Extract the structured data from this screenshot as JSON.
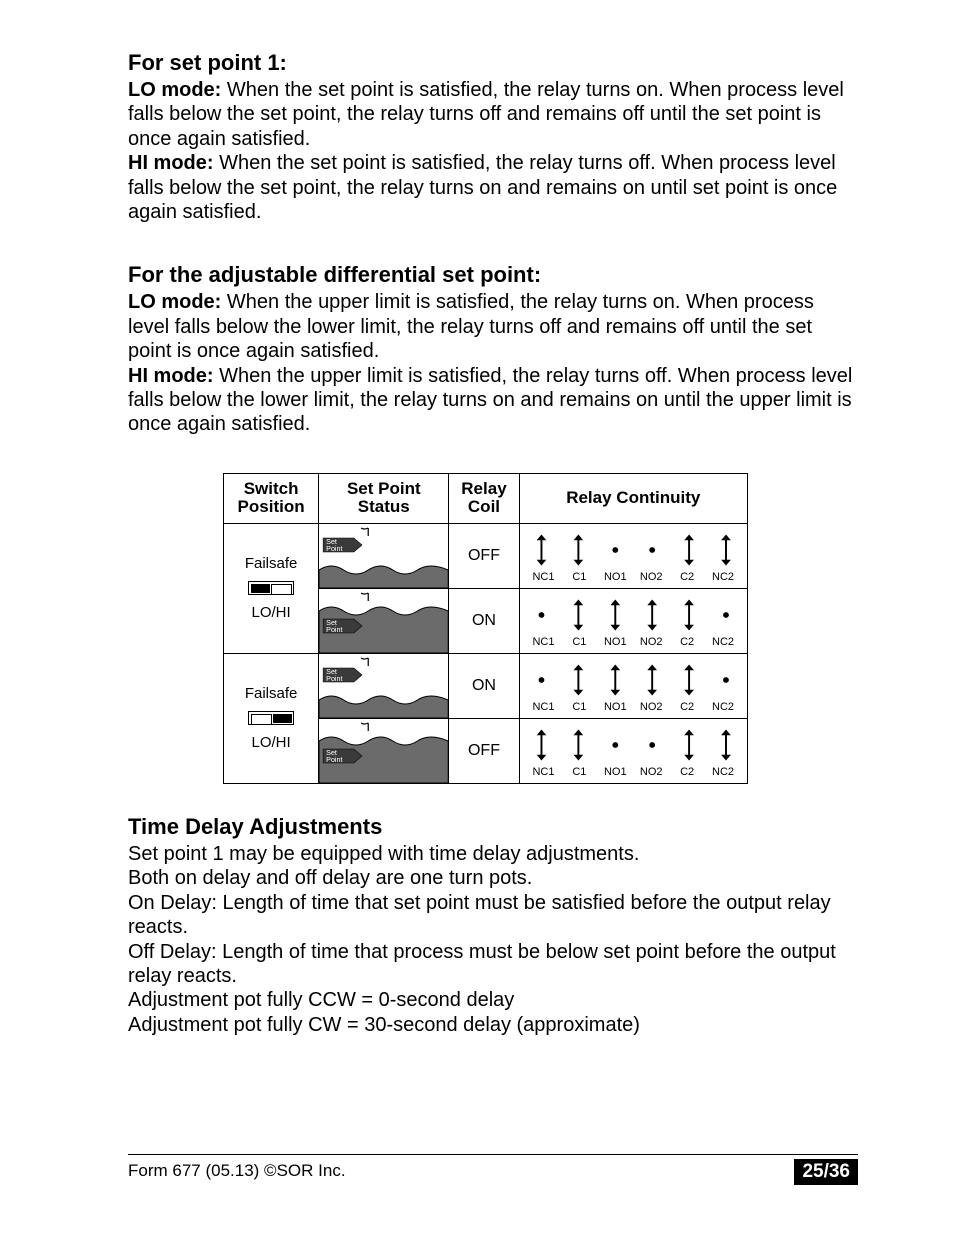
{
  "section1": {
    "heading": "For set point 1:",
    "lo_label": "LO mode:",
    "lo_text": " When the set point is satisfied, the relay turns on. When process level falls below the set point, the relay turns off and remains off until the set point is once again satisfied.",
    "hi_label": "HI mode:",
    "hi_text": " When the set point is satisfied, the relay turns off. When process level falls below the set point, the relay turns on and remains on until set point is once again satisfied."
  },
  "section2": {
    "heading": "For the adjustable differential set point:",
    "lo_label": "LO mode:",
    "lo_text": " When the upper limit is satisfied, the relay turns on. When process level falls below the lower limit, the relay turns off and remains off until the set point is once again satisfied.",
    "hi_label": "HI mode:",
    "hi_text": " When the upper limit is satisfied, the relay turns off. When process level falls below the lower limit, the relay turns on and remains on until the upper limit is once again satisfied."
  },
  "table": {
    "headers": {
      "switch": "Switch Position",
      "status": "Set Point Status",
      "coil": "Relay Coil",
      "continuity": "Relay Continuity"
    },
    "switch_labels": {
      "failsafe": "Failsafe",
      "lohi": "LO/HI"
    },
    "setpoint_tag": "Set Point",
    "contact_labels": [
      "NC1",
      "C1",
      "NO1",
      "NO2",
      "C2",
      "NC2"
    ],
    "rows": [
      {
        "coil": "OFF",
        "tank_full": false,
        "contacts": [
          1,
          1,
          0,
          0,
          1,
          1
        ]
      },
      {
        "coil": "ON",
        "tank_full": true,
        "contacts": [
          0,
          1,
          1,
          1,
          1,
          0
        ]
      },
      {
        "coil": "ON",
        "tank_full": false,
        "contacts": [
          0,
          1,
          1,
          1,
          1,
          0
        ]
      },
      {
        "coil": "OFF",
        "tank_full": true,
        "contacts": [
          1,
          1,
          0,
          0,
          1,
          1
        ]
      }
    ],
    "colors": {
      "tank_fill": "#6b6b6b",
      "tank_stroke": "#000",
      "tag_fill": "#3a3a3a",
      "tag_text": "#fff"
    }
  },
  "section3": {
    "heading": "Time Delay Adjustments",
    "lines": [
      "Set point 1 may be equipped with time delay adjustments.",
      "Both on delay and off delay are one turn pots.",
      "On Delay:  Length of time that set point must be satisfied before the output relay reacts.",
      "Off Delay:  Length of time that process must be below set point before the output relay reacts.",
      "Adjustment pot fully CCW = 0-second delay",
      "Adjustment pot fully CW = 30-second delay (approximate)"
    ]
  },
  "footer": {
    "left": "Form 677 (05.13) ©SOR Inc.",
    "right": "25/36"
  }
}
